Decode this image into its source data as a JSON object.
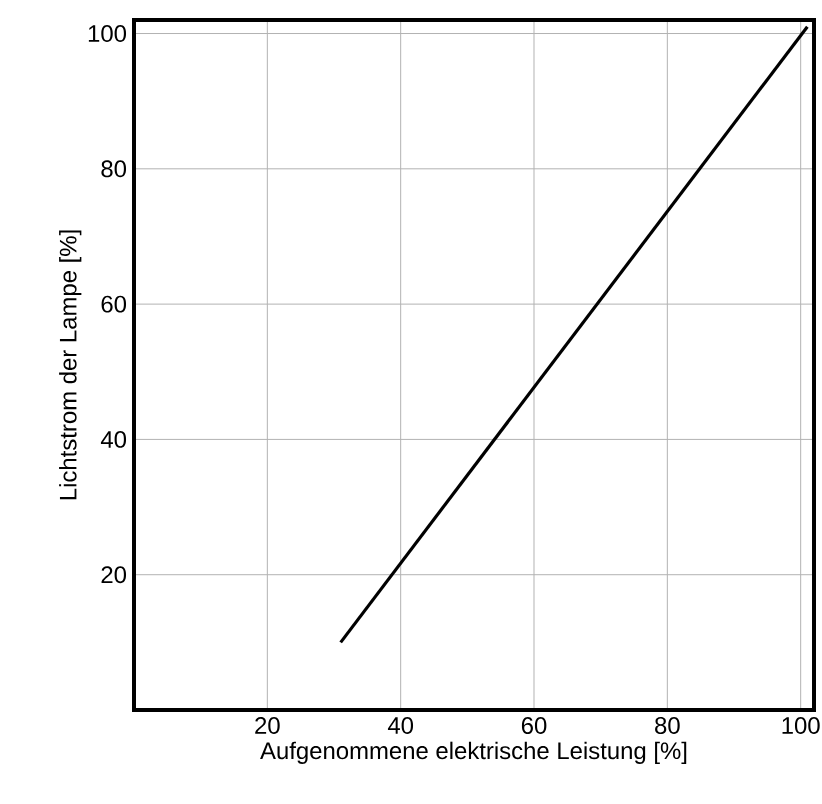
{
  "chart_data": {
    "type": "line",
    "xlabel": "Aufgenommene elektrische Leistung [%]",
    "ylabel": "Lichtstrom der Lampe [%]",
    "x": [
      31,
      101
    ],
    "series": [
      {
        "color": "#000000",
        "values": [
          10,
          101
        ]
      }
    ],
    "xlim": [
      0,
      102
    ],
    "ylim": [
      0,
      102
    ],
    "xticks": [
      20,
      40,
      60,
      80,
      100
    ],
    "yticks": [
      20,
      40,
      60,
      80,
      100
    ],
    "grid": true,
    "marker": "none",
    "line_style": "solid"
  }
}
